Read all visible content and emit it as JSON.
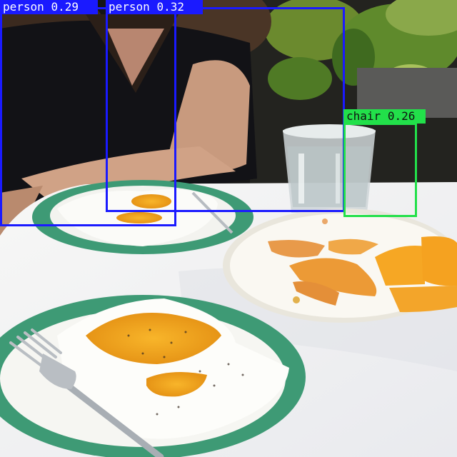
{
  "detections": [
    {
      "label": "person",
      "score": "0.29",
      "color": "#1a1aff",
      "text_color": "#ffffff"
    },
    {
      "label": "person",
      "score": "0.32",
      "color": "#1a1aff",
      "text_color": "#ffffff"
    },
    {
      "label": "chair",
      "score": "0.26",
      "color": "#22e04a",
      "text_color": "#111111"
    }
  ],
  "scene_colors": {
    "table": "#f4f4f2",
    "plate_rim": "#3e9a75",
    "egg_yolk": "#f2a81e",
    "mango": "#f0a030",
    "shirt": "#121216"
  }
}
